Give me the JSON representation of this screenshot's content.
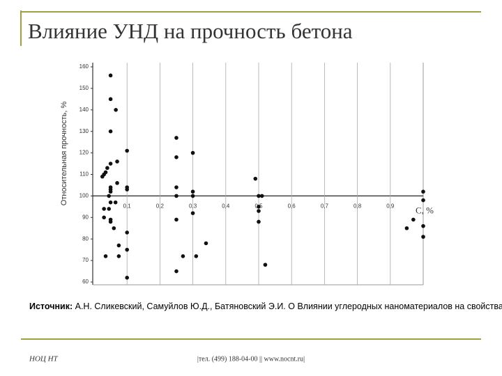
{
  "title": "Влияние УНД на прочность бетона",
  "source_label": "Источник:",
  "source_text": "А.Н. Сликевский, Самуйлов Ю.Д., Батяновский Э.И. О Влиянии углеродных наноматериалов на свойства цемента и цементного камня",
  "footer_left": "НОЦ НТ",
  "footer_center": "|тел. (499) 188-04-00 || www.nocnt.ru|",
  "chart_data": {
    "type": "scatter",
    "y_label": "Относительная прочность, %",
    "x_label": "С, %",
    "color": "#111111",
    "x": [
      0.05,
      0.05,
      0.066,
      0.05,
      0.07,
      0.05,
      0.04,
      0.035,
      0.03,
      0.025,
      0.07,
      0.05,
      0.05,
      0.05,
      0.045,
      0.065,
      0.05,
      0.03,
      0.045,
      0.03,
      0.05,
      0.05,
      0.06,
      0.075,
      0.035,
      0.075,
      0.1,
      0.1,
      0.1,
      0.1,
      0.1,
      0.1,
      0.25,
      0.25,
      0.25,
      0.25,
      0.25,
      0.25,
      0.27,
      0.3,
      0.3,
      0.3,
      0.3,
      0.31,
      0.34,
      0.49,
      0.5,
      0.51,
      0.5,
      0.5,
      0.5,
      0.52,
      0.95,
      0.97,
      1.0,
      1.0,
      1.0,
      1.0
    ],
    "values": [
      156,
      145,
      140,
      130,
      116,
      115,
      113,
      111,
      110,
      109,
      106,
      104,
      103,
      102,
      100,
      97,
      97,
      94,
      94,
      90,
      89,
      88,
      85,
      77,
      72,
      72,
      75,
      83,
      62,
      121,
      104,
      103,
      127,
      118,
      104,
      100,
      89,
      65,
      72,
      120,
      102,
      100,
      92,
      72,
      78,
      108,
      100,
      100,
      95,
      93,
      88,
      68,
      85,
      89,
      102,
      98,
      86,
      81
    ],
    "xlim": [
      0,
      1
    ],
    "ylim": [
      60,
      160
    ],
    "x_axis_position": 100,
    "xticks": [
      {
        "value": 0.1,
        "label": "0,1"
      },
      {
        "value": 0.2,
        "label": "0,2"
      },
      {
        "value": 0.3,
        "label": "0,3"
      },
      {
        "value": 0.4,
        "label": "0,4"
      },
      {
        "value": 0.5,
        "label": "0,5"
      },
      {
        "value": 0.6,
        "label": "0,6"
      },
      {
        "value": 0.7,
        "label": "0,7"
      },
      {
        "value": 0.8,
        "label": "0,8"
      },
      {
        "value": 0.9,
        "label": "0,9"
      }
    ],
    "yticks": [
      60,
      70,
      80,
      90,
      100,
      110,
      120,
      130,
      140,
      150,
      160
    ],
    "grid": true
  }
}
